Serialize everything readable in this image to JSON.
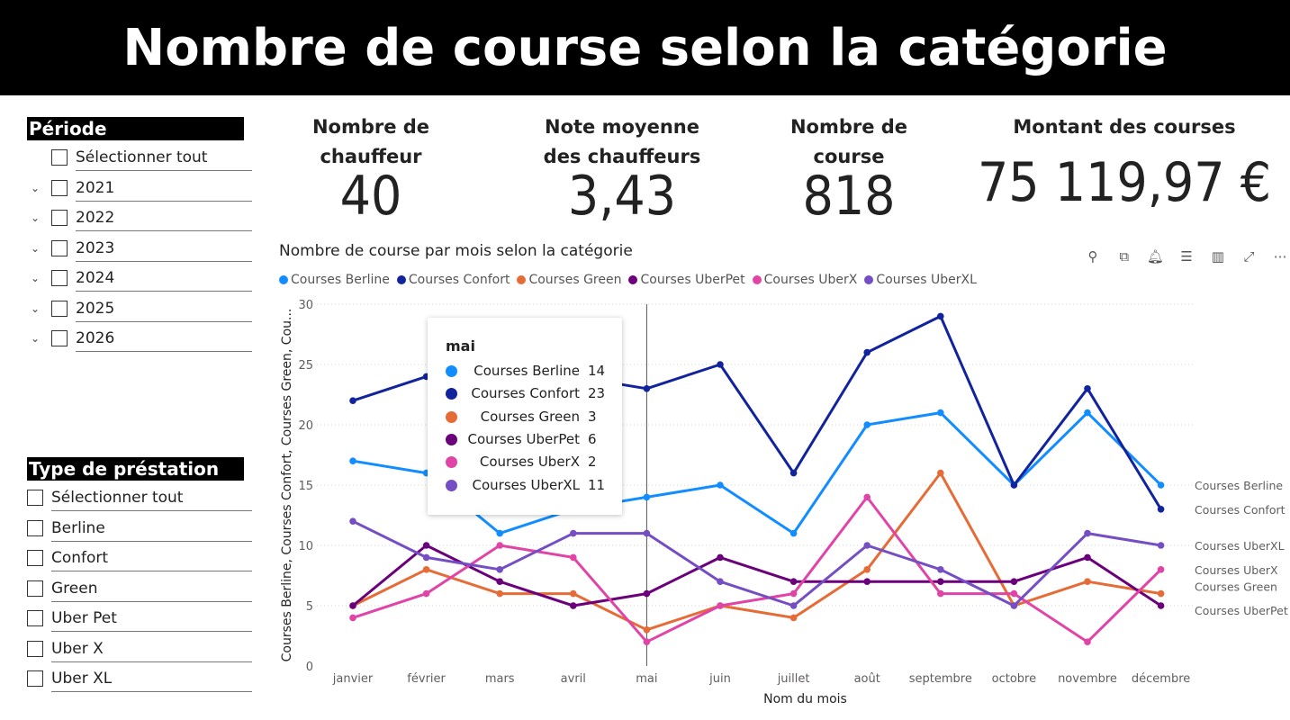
{
  "banner": {
    "title": "Nombre de course selon la catégorie"
  },
  "period_slicer": {
    "title": "Période",
    "select_all": "Sélectionner tout",
    "items": [
      "2021",
      "2022",
      "2023",
      "2024",
      "2025",
      "2026"
    ]
  },
  "type_slicer": {
    "title": "Type de préstation",
    "select_all": "Sélectionner tout",
    "items": [
      "Berline",
      "Confort",
      "Green",
      "Uber Pet",
      "Uber X",
      "Uber XL"
    ]
  },
  "kpis": [
    {
      "label_line1": "Nombre de",
      "label_line2": "chauffeur",
      "value": "40"
    },
    {
      "label_line1": "Note moyenne",
      "label_line2": "des chauffeurs",
      "value": "3,43"
    },
    {
      "label_line1": "Nombre de",
      "label_line2": "course",
      "value": "818"
    },
    {
      "label_line1": "Montant des courses",
      "label_line2": "",
      "value": "75 119,97 €"
    }
  ],
  "chart": {
    "title": "Nombre de course par mois selon la catégorie",
    "toolbar_icons": [
      "pin-icon",
      "copy-icon",
      "bell-icon",
      "filter-icon",
      "focus-icon",
      "expand-icon",
      "more-icon"
    ]
  },
  "tooltip": {
    "title": "mai",
    "rows": [
      {
        "name": "Courses Berline",
        "value": "14"
      },
      {
        "name": "Courses Confort",
        "value": "23"
      },
      {
        "name": "Courses Green",
        "value": "3"
      },
      {
        "name": "Courses UberPet",
        "value": "6"
      },
      {
        "name": "Courses UberX",
        "value": "2"
      },
      {
        "name": "Courses UberXL",
        "value": "11"
      }
    ]
  },
  "chart_data": {
    "type": "line",
    "title": "Nombre de course par mois selon la catégorie",
    "xlabel": "Nom du mois",
    "ylabel": "Courses Berline, Courses Confort, Courses Green, Cou...",
    "ylim": [
      0,
      30
    ],
    "yticks": [
      0,
      5,
      10,
      15,
      20,
      25,
      30
    ],
    "grid": true,
    "legend": "top",
    "categories": [
      "janvier",
      "février",
      "mars",
      "avril",
      "mai",
      "juin",
      "juillet",
      "août",
      "septembre",
      "octobre",
      "novembre",
      "décembre"
    ],
    "series": [
      {
        "name": "Courses Berline",
        "color": "#118DFF",
        "values": [
          17,
          16,
          11,
          13,
          14,
          15,
          11,
          20,
          21,
          15,
          21,
          15
        ]
      },
      {
        "name": "Courses Confort",
        "color": "#12239E",
        "values": [
          22,
          24,
          24,
          24,
          23,
          25,
          16,
          26,
          29,
          15,
          23,
          13
        ]
      },
      {
        "name": "Courses Green",
        "color": "#E66C37",
        "values": [
          5,
          8,
          6,
          6,
          3,
          5,
          4,
          8,
          16,
          5,
          7,
          6
        ]
      },
      {
        "name": "Courses UberPet",
        "color": "#6B007B",
        "values": [
          5,
          10,
          7,
          5,
          6,
          9,
          7,
          7,
          7,
          7,
          9,
          5
        ]
      },
      {
        "name": "Courses UberX",
        "color": "#E044A7",
        "values": [
          4,
          6,
          10,
          9,
          2,
          5,
          6,
          14,
          6,
          6,
          2,
          8
        ]
      },
      {
        "name": "Courses UberXL",
        "color": "#744EC2",
        "values": [
          12,
          9,
          8,
          11,
          11,
          7,
          5,
          10,
          8,
          5,
          11,
          10
        ]
      }
    ],
    "end_labels": [
      "Courses Berline",
      "Courses Confort",
      "Courses UberXL",
      "Courses UberX",
      "Courses Green",
      "Courses UberPet"
    ]
  }
}
